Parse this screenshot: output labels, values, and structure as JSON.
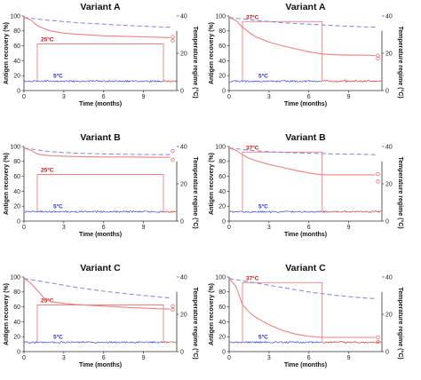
{
  "colors": {
    "recovery_line": "#f08080",
    "reference_dashed": "#8a8ae6",
    "temp_regime": "#f08080",
    "trace_5c": "#1f2fd0",
    "trace_end": "#d01818",
    "label_25c": "#cc1010",
    "label_37c": "#cc1010",
    "label_5c": "#1f2fd0",
    "marker": "#e07070"
  },
  "chart_data": [
    {
      "type": "line",
      "title": "Variant A",
      "regime_label": "25°C",
      "low_label": "5°C",
      "xlabel": "Time (months)",
      "ylabel_left": "Antigen recovery (%)",
      "ylabel_right": "Temperature regime (°C)",
      "x_ticks": [
        "0",
        "3",
        "6",
        "9"
      ],
      "y_ticks": [
        "0",
        "20",
        "40",
        "60",
        "80",
        "100"
      ],
      "y2_ticks": [
        "0",
        "20",
        "40"
      ],
      "xlim": [
        0,
        11.5
      ],
      "ylim": [
        0,
        100
      ],
      "y2lim": [
        0,
        40
      ],
      "regime_window": [
        1,
        10.5
      ],
      "regime_temp": 25,
      "series": [
        {
          "x": [
            0,
            0.5,
            1,
            1.5,
            2,
            3,
            4,
            5,
            6,
            7,
            8,
            9,
            10,
            11
          ],
          "y": [
            98,
            95,
            87,
            83,
            80,
            77,
            75.5,
            74.5,
            73.5,
            73,
            72.5,
            72,
            71.5,
            71
          ]
        },
        {
          "x": [
            0,
            2,
            4,
            6,
            8,
            10,
            11
          ],
          "y": [
            98,
            94,
            91,
            89,
            87,
            85.5,
            85
          ]
        }
      ],
      "markers": [
        {
          "x": 11.2,
          "y": 72
        },
        {
          "x": 11.2,
          "y": 67
        }
      ]
    },
    {
      "type": "line",
      "title": "Variant A",
      "regime_label": "37°C",
      "low_label": "5°C",
      "xlabel": "Time (months)",
      "ylabel_left": "Antigen recovery (%)",
      "ylabel_right": "Temperature regime (°C)",
      "x_ticks": [
        "0",
        "3",
        "6",
        "9"
      ],
      "y_ticks": [
        "0",
        "20",
        "40",
        "60",
        "80",
        "100"
      ],
      "y2_ticks": [
        "0",
        "20",
        "40"
      ],
      "xlim": [
        0,
        11.5
      ],
      "ylim": [
        0,
        100
      ],
      "y2lim": [
        0,
        40
      ],
      "regime_window": [
        1,
        7
      ],
      "regime_temp": 37,
      "series": [
        {
          "x": [
            0,
            0.5,
            1,
            1.5,
            2,
            3,
            4,
            5,
            6,
            7,
            8,
            9,
            10,
            11
          ],
          "y": [
            98,
            94,
            85,
            78,
            72,
            65,
            60,
            56,
            52,
            49,
            48,
            47.5,
            47.5,
            47
          ]
        },
        {
          "x": [
            0,
            2,
            4,
            6,
            8,
            10,
            11
          ],
          "y": [
            98,
            94,
            91,
            89,
            87,
            85.5,
            85
          ]
        }
      ],
      "markers": [
        {
          "x": 11.2,
          "y": 47
        },
        {
          "x": 11.2,
          "y": 43
        }
      ]
    },
    {
      "type": "line",
      "title": "Variant B",
      "regime_label": "25°C",
      "low_label": "5°C",
      "xlabel": "Time (months)",
      "ylabel_left": "Antigen recovery (%)",
      "ylabel_right": "Temperature regime (°C)",
      "x_ticks": [
        "0",
        "3",
        "6",
        "9"
      ],
      "y_ticks": [
        "0",
        "20",
        "40",
        "60",
        "80",
        "100"
      ],
      "y2_ticks": [
        "0",
        "20",
        "40"
      ],
      "xlim": [
        0,
        11.5
      ],
      "ylim": [
        0,
        100
      ],
      "y2lim": [
        0,
        40
      ],
      "regime_window": [
        1,
        10.5
      ],
      "regime_temp": 25,
      "series": [
        {
          "x": [
            0,
            0.5,
            1,
            1.5,
            2,
            3,
            4,
            6,
            8,
            10,
            11
          ],
          "y": [
            98,
            95,
            90,
            88.5,
            87.5,
            87,
            86.5,
            86,
            86,
            85.5,
            85.5
          ]
        },
        {
          "x": [
            0,
            2,
            4,
            6,
            8,
            10,
            11
          ],
          "y": [
            98,
            93,
            91,
            90,
            89.5,
            89,
            89
          ]
        }
      ],
      "markers": [
        {
          "x": 11.2,
          "y": 94
        },
        {
          "x": 11.2,
          "y": 82
        }
      ]
    },
    {
      "type": "line",
      "title": "Variant B",
      "regime_label": "37°C",
      "low_label": "5°C",
      "xlabel": "Time (months)",
      "ylabel_left": "Antigen recovery (%)",
      "ylabel_right": "Temperature regime (°C)",
      "x_ticks": [
        "0",
        "3",
        "6",
        "9"
      ],
      "y_ticks": [
        "0",
        "20",
        "40",
        "60",
        "80",
        "100"
      ],
      "y2_ticks": [
        "0",
        "20",
        "40"
      ],
      "xlim": [
        0,
        11.5
      ],
      "ylim": [
        0,
        100
      ],
      "y2lim": [
        0,
        40
      ],
      "regime_window": [
        1,
        7
      ],
      "regime_temp": 37,
      "series": [
        {
          "x": [
            0,
            0.5,
            1,
            1.5,
            2,
            3,
            4,
            5,
            6,
            7,
            8,
            9,
            10,
            11
          ],
          "y": [
            98,
            95,
            89,
            84,
            81,
            76,
            72,
            68,
            64.5,
            62,
            62,
            62,
            62,
            62
          ]
        },
        {
          "x": [
            0,
            2,
            4,
            6,
            8,
            10,
            11
          ],
          "y": [
            98,
            94,
            92,
            91,
            90,
            89.5,
            89
          ]
        }
      ],
      "markers": [
        {
          "x": 11.2,
          "y": 63
        },
        {
          "x": 11.2,
          "y": 53
        }
      ]
    },
    {
      "type": "line",
      "title": "Variant C",
      "regime_label": "25°C",
      "low_label": "5°C",
      "xlabel": "Time (months)",
      "ylabel_left": "Antigen recovery (%)",
      "ylabel_right": "Temperature regime (°C)",
      "x_ticks": [
        "0",
        "3",
        "6",
        "9"
      ],
      "y_ticks": [
        "0",
        "20",
        "40",
        "60",
        "80",
        "100"
      ],
      "y2_ticks": [
        "0",
        "20",
        "40"
      ],
      "xlim": [
        0,
        11.5
      ],
      "ylim": [
        0,
        100
      ],
      "y2lim": [
        0,
        40
      ],
      "regime_window": [
        1,
        10.5
      ],
      "regime_temp": 25,
      "series": [
        {
          "x": [
            0,
            0.5,
            1,
            1.5,
            2,
            3,
            4,
            5,
            6,
            7,
            8,
            9,
            10,
            11
          ],
          "y": [
            98,
            92,
            82,
            72,
            67,
            64.5,
            63,
            62,
            61,
            60,
            59,
            58.5,
            57.5,
            57
          ]
        },
        {
          "x": [
            0,
            2,
            4,
            6,
            8,
            10,
            11
          ],
          "y": [
            98,
            92,
            86,
            81,
            77,
            73.5,
            72
          ]
        }
      ],
      "markers": [
        {
          "x": 11.2,
          "y": 61
        },
        {
          "x": 11.2,
          "y": 56
        }
      ]
    },
    {
      "type": "line",
      "title": "Variant C",
      "regime_label": "37°C",
      "low_label": "5°C",
      "xlabel": "Time (months)",
      "ylabel_left": "Antigen recovery (%)",
      "ylabel_right": "Temperature regime (°C)",
      "x_ticks": [
        "0",
        "3",
        "6",
        "9"
      ],
      "y_ticks": [
        "0",
        "20",
        "40",
        "60",
        "80",
        "100"
      ],
      "y2_ticks": [
        "0",
        "20",
        "40"
      ],
      "xlim": [
        0,
        11.5
      ],
      "ylim": [
        0,
        100
      ],
      "y2lim": [
        0,
        40
      ],
      "regime_window": [
        1,
        7
      ],
      "regime_temp": 37,
      "series": [
        {
          "x": [
            0,
            0.5,
            1,
            1.5,
            2,
            3,
            4,
            5,
            6,
            7,
            8,
            9,
            10,
            11
          ],
          "y": [
            98,
            88,
            63,
            53,
            46,
            36,
            28.5,
            23.5,
            20.5,
            19,
            19,
            19,
            19,
            19
          ]
        },
        {
          "x": [
            0,
            2,
            4,
            6,
            8,
            10,
            11
          ],
          "y": [
            98,
            92,
            86,
            80,
            75.5,
            72,
            71
          ]
        }
      ],
      "markers": [
        {
          "x": 11.2,
          "y": 19
        },
        {
          "x": 11.2,
          "y": 13
        }
      ]
    }
  ]
}
